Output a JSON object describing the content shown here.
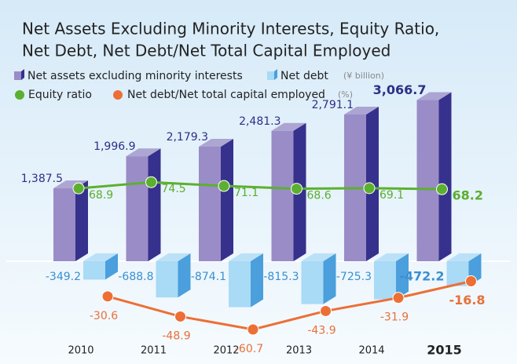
{
  "chart_data": {
    "type": "bar-line-combo",
    "title": [
      "Net Assets Excluding Minority Interests, Equity Ratio,",
      "Net Debt, Net Debt/Net Total Capital Employed"
    ],
    "categories": [
      "2010",
      "2011",
      "2012",
      "2013",
      "2014",
      "2015"
    ],
    "highlight_category_index": 5,
    "series": [
      {
        "name": "Net assets excluding minority interests",
        "type": "bar3d",
        "color": "#9a8cc6",
        "side_color": "#36318c",
        "label_color": "#2e2f86",
        "values": [
          1387.5,
          1996.9,
          2179.3,
          2481.3,
          2791.1,
          3066.7
        ],
        "value_labels": [
          "1,387.5",
          "1,996.9",
          "2,179.3",
          "2,481.3",
          "2,791.1",
          "3,066.7"
        ]
      },
      {
        "name": "Net debt",
        "type": "bar3d",
        "color": "#a9daf6",
        "side_color": "#4a9fdc",
        "label_color": "#3a8fd0",
        "values": [
          -349.2,
          -688.8,
          -874.1,
          -815.3,
          -725.3,
          -472.2
        ]
      },
      {
        "name": "Equity ratio",
        "type": "line",
        "color": "#5cb030",
        "label_color": "#5aae2e",
        "values": [
          68.9,
          74.5,
          71.1,
          68.6,
          69.1,
          68.2
        ]
      },
      {
        "name": "Net debt/Net total capital employed",
        "type": "line",
        "color": "#ec6f36",
        "label_color": "#e8703a",
        "values": [
          -30.6,
          -48.9,
          -60.7,
          -43.9,
          -31.9,
          -16.8
        ]
      }
    ],
    "bar_unit": "(¥ billion)",
    "line_unit": "(%)"
  }
}
